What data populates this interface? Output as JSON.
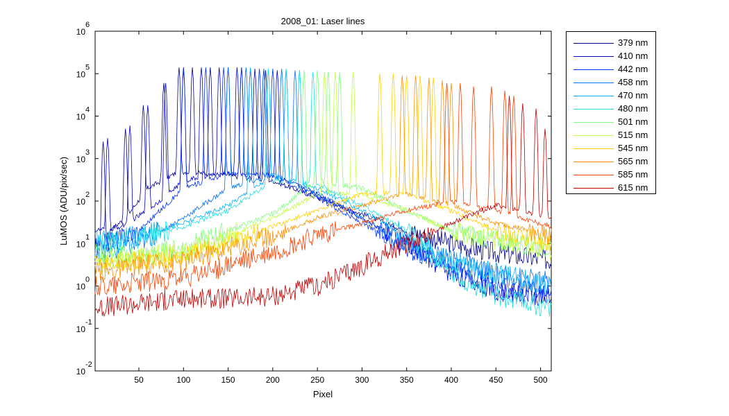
{
  "chart_data": {
    "type": "line",
    "title": "2008_01: Laser lines",
    "xlabel": "Pixel",
    "ylabel": "LuMOS (ADU/pix/sec)",
    "xlim": [
      1,
      512
    ],
    "ylim": [
      0.01,
      1000000
    ],
    "yscale": "log",
    "x_ticks": [
      50,
      100,
      150,
      200,
      250,
      300,
      350,
      400,
      450,
      500
    ],
    "y_ticks": [
      {
        "base": "10",
        "exp": "-2",
        "value": 0.01
      },
      {
        "base": "10",
        "exp": "-1",
        "value": 0.1
      },
      {
        "base": "10",
        "exp": "0",
        "value": 1
      },
      {
        "base": "10",
        "exp": "1",
        "value": 10
      },
      {
        "base": "10",
        "exp": "2",
        "value": 100
      },
      {
        "base": "10",
        "exp": "3",
        "value": 1000
      },
      {
        "base": "10",
        "exp": "4",
        "value": 10000
      },
      {
        "base": "10",
        "exp": "5",
        "value": 100000
      },
      {
        "base": "10",
        "exp": "6",
        "value": 1000000
      }
    ],
    "grid": false,
    "legend_position": "outside-top-right",
    "series": [
      {
        "name": "379 nm",
        "color": "#00008f",
        "peaks": [
          [
            10,
            2500
          ],
          [
            35,
            5000
          ],
          [
            55,
            18000
          ],
          [
            78,
            60000
          ],
          [
            95,
            140000
          ],
          [
            110,
            140000
          ],
          [
            130,
            140000
          ],
          [
            150,
            140000
          ],
          [
            165,
            140000
          ],
          [
            180,
            130000
          ],
          [
            192,
            120000
          ]
        ],
        "values": [
          [
            1,
            6
          ],
          [
            10,
            15
          ],
          [
            35,
            40
          ],
          [
            60,
            200
          ],
          [
            95,
            500
          ],
          [
            150,
            400
          ],
          [
            200,
            300
          ],
          [
            250,
            120
          ],
          [
            300,
            50
          ],
          [
            350,
            20
          ],
          [
            400,
            10
          ],
          [
            450,
            6
          ],
          [
            512,
            4
          ]
        ]
      },
      {
        "name": "410 nm",
        "color": "#0000cc",
        "peaks": [
          [
            15,
            3000
          ],
          [
            40,
            6000
          ],
          [
            60,
            18000
          ],
          [
            80,
            60000
          ],
          [
            100,
            140000
          ],
          [
            120,
            140000
          ],
          [
            140,
            140000
          ],
          [
            160,
            140000
          ],
          [
            175,
            130000
          ],
          [
            190,
            130000
          ],
          [
            205,
            120000
          ]
        ],
        "values": [
          [
            1,
            20
          ],
          [
            30,
            25
          ],
          [
            60,
            60
          ],
          [
            100,
            300
          ],
          [
            140,
            450
          ],
          [
            200,
            400
          ],
          [
            250,
            150
          ],
          [
            300,
            40
          ],
          [
            350,
            10
          ],
          [
            400,
            2
          ],
          [
            450,
            0.8
          ],
          [
            512,
            0.5
          ]
        ]
      },
      {
        "name": "442 nm",
        "color": "#0030ff",
        "peaks": [
          [
            100,
            120000
          ],
          [
            125,
            140000
          ],
          [
            145,
            140000
          ],
          [
            165,
            140000
          ],
          [
            185,
            130000
          ],
          [
            200,
            130000
          ],
          [
            215,
            120000
          ]
        ],
        "values": [
          [
            1,
            8
          ],
          [
            50,
            20
          ],
          [
            100,
            200
          ],
          [
            150,
            450
          ],
          [
            200,
            400
          ],
          [
            250,
            120
          ],
          [
            300,
            30
          ],
          [
            350,
            8
          ],
          [
            400,
            3
          ],
          [
            450,
            1
          ],
          [
            512,
            0.6
          ]
        ]
      },
      {
        "name": "458 nm",
        "color": "#0070ff",
        "peaks": [
          [
            150,
            140000
          ],
          [
            170,
            140000
          ],
          [
            190,
            130000
          ],
          [
            210,
            130000
          ],
          [
            225,
            120000
          ]
        ],
        "values": [
          [
            1,
            5
          ],
          [
            50,
            10
          ],
          [
            100,
            40
          ],
          [
            150,
            200
          ],
          [
            200,
            400
          ],
          [
            250,
            150
          ],
          [
            300,
            40
          ],
          [
            350,
            10
          ],
          [
            400,
            4
          ],
          [
            450,
            2
          ],
          [
            512,
            1.2
          ]
        ]
      },
      {
        "name": "470 nm",
        "color": "#00b0ff",
        "peaks": [
          [
            175,
            140000
          ],
          [
            195,
            130000
          ],
          [
            215,
            130000
          ],
          [
            230,
            120000
          ]
        ],
        "values": [
          [
            1,
            12
          ],
          [
            50,
            15
          ],
          [
            100,
            30
          ],
          [
            150,
            80
          ],
          [
            200,
            400
          ],
          [
            250,
            200
          ],
          [
            300,
            60
          ],
          [
            350,
            15
          ],
          [
            400,
            4
          ],
          [
            450,
            2
          ],
          [
            512,
            1
          ]
        ]
      },
      {
        "name": "480 nm",
        "color": "#20e0e0",
        "peaks": [
          [
            195,
            130000
          ],
          [
            215,
            130000
          ],
          [
            230,
            120000
          ],
          [
            245,
            110000
          ]
        ],
        "values": [
          [
            1,
            10
          ],
          [
            50,
            12
          ],
          [
            100,
            25
          ],
          [
            150,
            60
          ],
          [
            200,
            300
          ],
          [
            250,
            250
          ],
          [
            300,
            80
          ],
          [
            350,
            20
          ],
          [
            400,
            2
          ],
          [
            450,
            0.6
          ],
          [
            512,
            0.3
          ]
        ]
      },
      {
        "name": "501 nm",
        "color": "#80ff80",
        "peaks": [
          [
            235,
            120000
          ],
          [
            250,
            120000
          ],
          [
            262,
            110000
          ],
          [
            275,
            110000
          ]
        ],
        "values": [
          [
            1,
            6
          ],
          [
            50,
            5
          ],
          [
            100,
            8
          ],
          [
            150,
            20
          ],
          [
            200,
            50
          ],
          [
            250,
            300
          ],
          [
            300,
            200
          ],
          [
            350,
            60
          ],
          [
            400,
            20
          ],
          [
            450,
            12
          ],
          [
            512,
            8
          ]
        ]
      },
      {
        "name": "515 nm",
        "color": "#c0ff40",
        "peaks": [
          [
            258,
            110000
          ],
          [
            270,
            110000
          ],
          [
            290,
            110000
          ]
        ],
        "values": [
          [
            1,
            4
          ],
          [
            50,
            5
          ],
          [
            100,
            6
          ],
          [
            150,
            15
          ],
          [
            200,
            40
          ],
          [
            250,
            150
          ],
          [
            300,
            150
          ],
          [
            350,
            60
          ],
          [
            400,
            20
          ],
          [
            450,
            12
          ],
          [
            512,
            7
          ]
        ]
      },
      {
        "name": "545 nm",
        "color": "#ffd000",
        "peaks": [
          [
            320,
            100000
          ],
          [
            335,
            100000
          ],
          [
            350,
            90000
          ],
          [
            365,
            90000
          ],
          [
            380,
            80000
          ]
        ],
        "values": [
          [
            1,
            3
          ],
          [
            50,
            4
          ],
          [
            100,
            5
          ],
          [
            150,
            10
          ],
          [
            200,
            25
          ],
          [
            250,
            60
          ],
          [
            300,
            150
          ],
          [
            350,
            150
          ],
          [
            400,
            60
          ],
          [
            450,
            20
          ],
          [
            512,
            10
          ]
        ]
      },
      {
        "name": "565 nm",
        "color": "#ff9000",
        "peaks": [
          [
            345,
            90000
          ],
          [
            360,
            90000
          ],
          [
            375,
            80000
          ],
          [
            390,
            70000
          ],
          [
            400,
            60000
          ]
        ],
        "values": [
          [
            1,
            2
          ],
          [
            50,
            3
          ],
          [
            100,
            4
          ],
          [
            150,
            8
          ],
          [
            200,
            15
          ],
          [
            250,
            40
          ],
          [
            300,
            80
          ],
          [
            350,
            150
          ],
          [
            400,
            80
          ],
          [
            450,
            30
          ],
          [
            512,
            15
          ]
        ]
      },
      {
        "name": "585 nm",
        "color": "#ff4000",
        "peaks": [
          [
            395,
            60000
          ],
          [
            410,
            60000
          ],
          [
            425,
            50000
          ],
          [
            445,
            50000
          ],
          [
            460,
            40000
          ],
          [
            470,
            30000
          ]
        ],
        "values": [
          [
            1,
            1
          ],
          [
            50,
            1.2
          ],
          [
            100,
            1.5
          ],
          [
            150,
            3
          ],
          [
            200,
            6
          ],
          [
            250,
            15
          ],
          [
            300,
            30
          ],
          [
            350,
            60
          ],
          [
            400,
            100
          ],
          [
            450,
            60
          ],
          [
            512,
            25
          ]
        ]
      },
      {
        "name": "615 nm",
        "color": "#c00000",
        "peaks": [
          [
            465,
            30000
          ],
          [
            480,
            20000
          ],
          [
            495,
            15000
          ],
          [
            505,
            5000
          ]
        ],
        "values": [
          [
            1,
            0.3
          ],
          [
            50,
            0.4
          ],
          [
            100,
            0.5
          ],
          [
            150,
            0.5
          ],
          [
            200,
            0.6
          ],
          [
            250,
            1
          ],
          [
            300,
            3
          ],
          [
            350,
            10
          ],
          [
            400,
            30
          ],
          [
            450,
            80
          ],
          [
            512,
            40
          ]
        ]
      }
    ]
  }
}
